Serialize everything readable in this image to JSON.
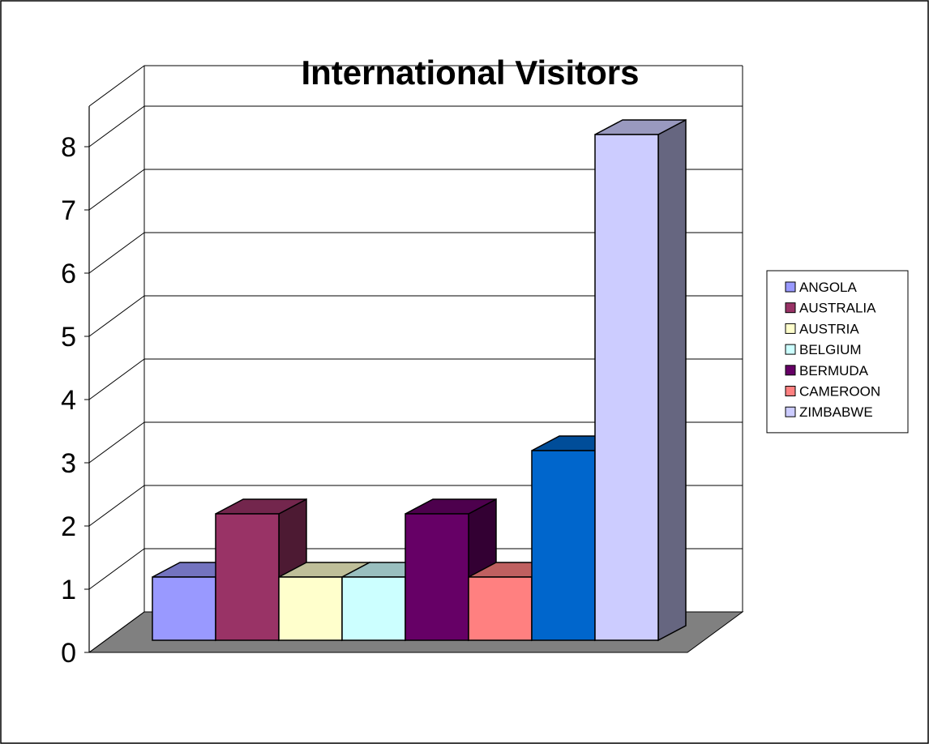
{
  "chart_data": {
    "type": "bar",
    "title": "International Visitors",
    "xlabel": "",
    "ylabel": "",
    "ylim": [
      0,
      8
    ],
    "yticks": [
      0,
      1,
      2,
      3,
      4,
      5,
      6,
      7,
      8
    ],
    "grid": true,
    "legend_position": "right",
    "series": [
      {
        "name": "ANGOLA",
        "value": 1,
        "color": "#9999FF"
      },
      {
        "name": "AUSTRALIA",
        "value": 2,
        "color": "#993366"
      },
      {
        "name": "AUSTRIA",
        "value": 1,
        "color": "#FFFFCC"
      },
      {
        "name": "BELGIUM",
        "value": 1,
        "color": "#CCFFFF"
      },
      {
        "name": "BERMUDA",
        "value": 2,
        "color": "#660066"
      },
      {
        "name": "CAMEROON",
        "value": 1,
        "color": "#FF8080"
      },
      {
        "name": "",
        "value": 3,
        "color": "#0066CC"
      },
      {
        "name": "ZIMBABWE",
        "value": 8,
        "color": "#CCCCFF"
      }
    ]
  }
}
